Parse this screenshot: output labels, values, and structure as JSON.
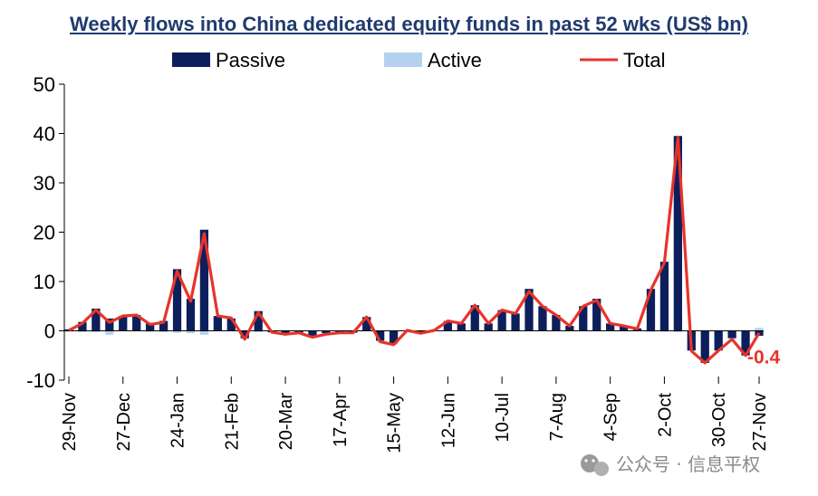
{
  "chart_data": {
    "type": "bar+line",
    "title": "Weekly flows into China dedicated equity funds in past 52 wks (US$ bn)",
    "legend": {
      "placement": "top",
      "entries": [
        "Passive",
        "Active",
        "Total"
      ]
    },
    "colors": {
      "passive": "#0c1f5c",
      "active": "#b4d2ee",
      "total": "#e8332a",
      "end_label": "#e8332a"
    },
    "ylim": [
      -10,
      50
    ],
    "yticks": [
      "-10",
      "0",
      "10",
      "20",
      "30",
      "40",
      "50"
    ],
    "grid": false,
    "x_tick_labels": [
      "29-Nov",
      "27-Dec",
      "24-Jan",
      "21-Feb",
      "20-Mar",
      "17-Apr",
      "15-May",
      "12-Jun",
      "10-Jul",
      "7-Aug",
      "4-Sep",
      "2-Oct",
      "30-Oct",
      "27-Nov"
    ],
    "x_tick_every": 4,
    "series": [
      {
        "name": "Passive",
        "type": "bar",
        "values": [
          0.3,
          1.8,
          4.5,
          2.5,
          3.0,
          3.2,
          1.5,
          2.0,
          12.5,
          6.5,
          20.5,
          3.0,
          2.5,
          -1.5,
          4.0,
          -0.3,
          -0.5,
          -0.4,
          -1.0,
          -0.5,
          -0.4,
          -0.4,
          2.8,
          -2.0,
          -2.5,
          0.1,
          -0.5,
          0.1,
          2.0,
          1.5,
          5.2,
          1.5,
          4.2,
          3.5,
          8.5,
          5.0,
          3.2,
          1.0,
          5.0,
          6.5,
          1.5,
          1.0,
          0.5,
          8.5,
          14.0,
          39.5,
          -4.0,
          -6.5,
          -4.0,
          -1.5,
          -5.0,
          -1.0
        ]
      },
      {
        "name": "Active",
        "type": "bar",
        "values": [
          -0.2,
          -0.3,
          -0.3,
          -0.8,
          0.0,
          0.0,
          -0.2,
          -0.3,
          -0.4,
          -0.5,
          -0.8,
          0.0,
          0.1,
          -0.2,
          -0.3,
          0.0,
          -0.2,
          0.0,
          -0.3,
          -0.2,
          0.0,
          0.0,
          0.0,
          -0.2,
          -0.3,
          0.0,
          0.0,
          0.0,
          0.0,
          0.0,
          0.0,
          0.0,
          0.0,
          0.0,
          0.0,
          0.0,
          0.0,
          0.0,
          0.0,
          0.0,
          0.0,
          0.0,
          -0.1,
          -0.2,
          -0.2,
          -0.3,
          -0.1,
          0.0,
          0.0,
          -0.2,
          0.0,
          0.6
        ]
      },
      {
        "name": "Total",
        "type": "line",
        "values": [
          0.1,
          1.5,
          4.2,
          1.7,
          3.0,
          3.2,
          1.3,
          1.7,
          12.1,
          6.0,
          19.7,
          3.0,
          2.6,
          -1.7,
          3.7,
          -0.3,
          -0.7,
          -0.4,
          -1.3,
          -0.7,
          -0.4,
          -0.4,
          2.8,
          -2.2,
          -2.8,
          0.1,
          -0.5,
          0.1,
          2.0,
          1.5,
          5.2,
          1.5,
          4.2,
          3.5,
          8.0,
          5.0,
          3.2,
          1.0,
          5.0,
          6.2,
          1.5,
          1.0,
          0.4,
          8.3,
          13.8,
          39.2,
          -4.1,
          -6.5,
          -4.0,
          -1.7,
          -5.0,
          -0.4
        ]
      }
    ],
    "end_label": "-0.4"
  },
  "watermark": {
    "text": "公众号 · 信息平权",
    "icon": "wechat-icon"
  }
}
